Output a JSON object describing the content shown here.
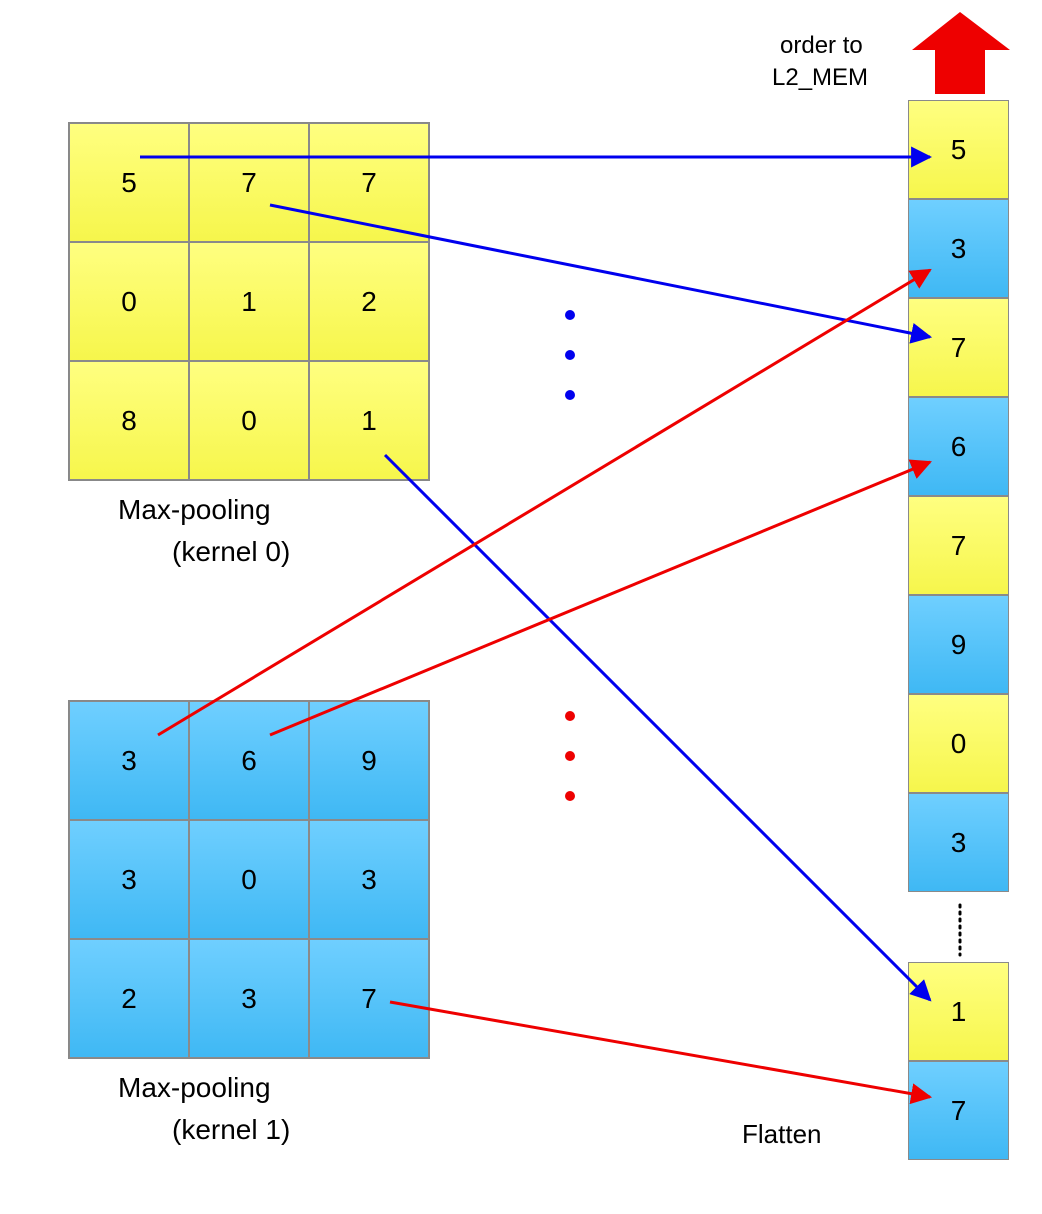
{
  "colors": {
    "yellow": "#f9f95a",
    "blue": "#4cc0f8",
    "blue_arrow": "#0000ee",
    "red_arrow": "#ee0000"
  },
  "kernel0": {
    "values": [
      [
        "5",
        "7",
        "7"
      ],
      [
        "0",
        "1",
        "2"
      ],
      [
        "8",
        "0",
        "1"
      ]
    ],
    "label_line1": "Max-pooling",
    "label_line2": "(kernel 0)"
  },
  "kernel1": {
    "values": [
      [
        "3",
        "6",
        "9"
      ],
      [
        "3",
        "0",
        "3"
      ],
      [
        "2",
        "3",
        "7"
      ]
    ],
    "label_line1": "Max-pooling",
    "label_line2": "(kernel 1)"
  },
  "flatten": {
    "label": "Flatten",
    "order_line1": "order to",
    "order_line2": "L2_MEM",
    "top_cells": [
      {
        "value": "5",
        "color": "yellow"
      },
      {
        "value": "3",
        "color": "blue"
      },
      {
        "value": "7",
        "color": "yellow"
      },
      {
        "value": "6",
        "color": "blue"
      },
      {
        "value": "7",
        "color": "yellow"
      },
      {
        "value": "9",
        "color": "blue"
      },
      {
        "value": "0",
        "color": "yellow"
      },
      {
        "value": "3",
        "color": "blue"
      }
    ],
    "bottom_cells": [
      {
        "value": "1",
        "color": "yellow"
      },
      {
        "value": "7",
        "color": "blue"
      }
    ]
  }
}
